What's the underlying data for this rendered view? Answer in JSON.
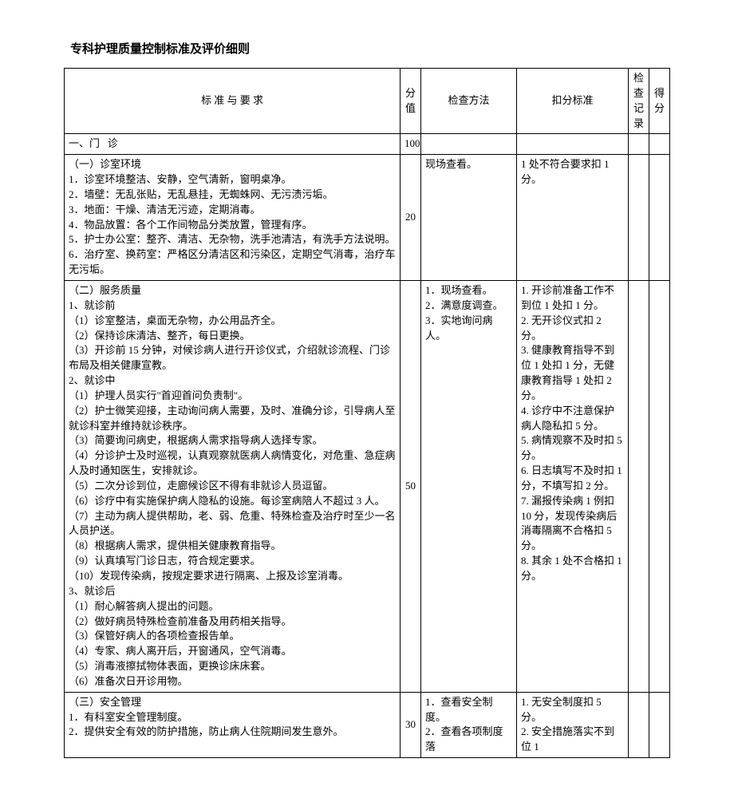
{
  "title": "专科护理质量控制标准及评价细则",
  "headers": {
    "standard": "标   准   与   要   求",
    "score": "分值",
    "method": "检查方法",
    "deduct": "扣分标准",
    "record": "检查记录",
    "final": "得分"
  },
  "rows": [
    {
      "standard": "一、门   诊",
      "score": "100",
      "method": "",
      "deduct": "",
      "single": true
    },
    {
      "standard": "（一）诊室环境\n1．诊室环境整洁、安静，空气清新，窗明桌净。\n2．墙壁：无乱张贴，无乱悬挂，无蜘蛛网、无污渍污垢。\n3．地面：干燥、清洁无污迹，定期消毒。\n4．物品放置：各个工作间物品分类放置，管理有序。\n5．护士办公室：整齐、清洁、无杂物，洗手池清洁，有洗手方法说明。\n6．治疗室、换药室：严格区分清洁区和污染区，定期空气消毒，治疗车无污垢。",
      "score": "20",
      "method": "现场查看。",
      "deduct": "1 处不符合要求扣 1 分。"
    },
    {
      "standard": "（二）服务质量\n1、就诊前\n（1）诊室整洁，桌面无杂物，办公用品齐全。\n（2）保持诊床清洁、整齐，每日更换。\n（3）开诊前 15 分钟，对候诊病人进行开诊仪式，介绍就诊流程、门诊布局及相关健康宣教。\n2、就诊中\n（1）护理人员实行\"首迎首问负责制\"。\n（2）护士微笑迎接，主动询问病人需要，及时、准确分诊，引导病人至就诊科室并维持就诊秩序。\n（3）简要询问病史，根据病人需求指导病人选择专家。\n（4）分诊护士及时巡视，认真观察就医病人病情变化，对危重、急症病人及时通知医生，安排就诊。\n（5）二次分诊到位，走廊候诊区不得有非就诊人员逗留。\n（6）诊疗中有实施保护病人隐私的设施。每诊室病陪人不超过 3 人。\n（7）主动为病人提供帮助，老、弱、危重、特殊检查及治疗时至少一名人员护送。\n（8）根据病人需求，提供相关健康教育指导。\n（9）认真填写门诊日志，符合规定要求。\n（10）发现传染病，按规定要求进行隔离、上报及诊室消毒。\n3、就诊后\n（1）耐心解答病人提出的问题。\n（2）做好病员特殊检查前准备及用药相关指导。\n（3）保管好病人的各项检查报告单。\n（4）专家、病人离开后，开窗通风，空气消毒。\n（5）消毒液擦拭物体表面，更换诊床床套。\n（6）准备次日开诊用物。",
      "score": "50",
      "method": "1．现场查看。\n2．满意度调查。\n3．实地询问病人。",
      "deduct": "1. 开诊前准备工作不到位 1 处扣 1 分。\n2. 无开诊仪式扣 2 分。\n3. 健康教育指导不到位 1 处扣 1 分，无健康教育指导 1 处扣 2 分。\n4. 诊疗中不注意保护病人隐私扣 5 分。\n5. 病情观察不及时扣 5 分。\n6. 日志填写不及时扣 1 分，不填写扣 2 分。\n7. 漏报传染病 1 例扣 10 分，发现传染病后消毒隔离不合格扣 5 分。\n8. 其余 1 处不合格扣 1 分。"
    },
    {
      "standard": "（三）安全管理\n1．有科室安全管理制度。\n2．提供安全有效的防护措施，防止病人住院期间发生意外。",
      "score": "30",
      "method": "1．查看安全制度。\n2．查看各项制度落",
      "deduct": "1. 无安全制度扣 5 分。\n2. 安全措施落实不到位 1"
    }
  ]
}
